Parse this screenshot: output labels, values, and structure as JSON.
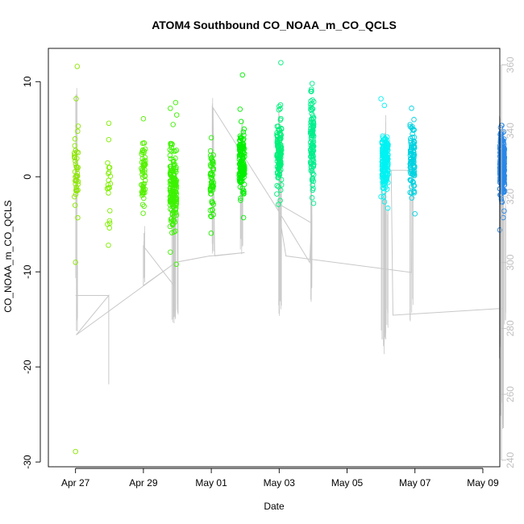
{
  "chart_data": {
    "type": "scatter",
    "title": "ATOM4 Southbound CO_NOAA_m_CO_QCLS",
    "xlabel": "Date",
    "ylabel": "CO_NOAA_m_CO_QCLS",
    "xlim_days": [
      -0.8,
      12.5
    ],
    "ylim": [
      -30.5,
      13.5
    ],
    "ylim_right": [
      238,
      365
    ],
    "x_ticks": [
      {
        "day": 0,
        "label": "Apr 27"
      },
      {
        "day": 2,
        "label": "Apr 29"
      },
      {
        "day": 4,
        "label": "May 01"
      },
      {
        "day": 6,
        "label": "May 03"
      },
      {
        "day": 8,
        "label": "May 05"
      },
      {
        "day": 10,
        "label": "May 07"
      },
      {
        "day": 12,
        "label": "May 09"
      }
    ],
    "y_ticks": [
      -30,
      -20,
      -10,
      0,
      10
    ],
    "y_ticks_right": [
      240,
      260,
      280,
      300,
      320,
      340,
      360
    ],
    "scatter_groups": [
      {
        "center": 0.02,
        "spread": 0.06,
        "n": 40,
        "mean": 0.3,
        "sd": 1.9,
        "color": "#8CE600",
        "outliers": [
          [
            0.05,
            11.6
          ],
          [
            0.02,
            8.2
          ],
          [
            0.0,
            -9.0
          ],
          [
            0.0,
            -28.9
          ]
        ]
      },
      {
        "center": 0.98,
        "spread": 0.05,
        "n": 20,
        "mean": -1.0,
        "sd": 2.6,
        "color": "#7FEE00",
        "outliers": [
          [
            0.97,
            -7.2
          ],
          [
            0.98,
            3.9
          ]
        ]
      },
      {
        "center": 2.0,
        "spread": 0.06,
        "n": 55,
        "mean": 0.5,
        "sd": 2.0,
        "color": "#55F000",
        "outliers": [
          [
            2.0,
            6.1
          ],
          [
            2.02,
            -3.1
          ]
        ]
      },
      {
        "center": 2.88,
        "spread": 0.1,
        "n": 160,
        "mean": -0.8,
        "sd": 2.1,
        "color": "#3CF200",
        "outliers": [
          [
            2.95,
            7.8
          ],
          [
            2.98,
            6.5
          ],
          [
            2.97,
            -9.2
          ],
          [
            2.9,
            -5.8
          ]
        ]
      },
      {
        "center": 4.02,
        "spread": 0.05,
        "n": 55,
        "mean": -0.6,
        "sd": 1.6,
        "color": "#22F000",
        "outliers": [
          [
            4.0,
            4.1
          ],
          [
            4.0,
            -4.2
          ]
        ]
      },
      {
        "center": 4.9,
        "spread": 0.08,
        "n": 140,
        "mean": 1.2,
        "sd": 1.8,
        "color": "#00F000",
        "outliers": [
          [
            4.92,
            10.7
          ],
          [
            4.95,
            -4.3
          ],
          [
            4.88,
            5.8
          ]
        ]
      },
      {
        "center": 6.0,
        "spread": 0.07,
        "n": 120,
        "mean": 2.5,
        "sd": 1.9,
        "color": "#00F07A",
        "outliers": [
          [
            6.05,
            12.0
          ],
          [
            6.0,
            7.4
          ],
          [
            6.03,
            -2.5
          ]
        ]
      },
      {
        "center": 6.97,
        "spread": 0.05,
        "n": 110,
        "mean": 3.0,
        "sd": 2.5,
        "color": "#00EE8C",
        "outliers": [
          [
            6.97,
            9.8
          ],
          [
            6.95,
            9.2
          ]
        ]
      },
      {
        "center": 9.12,
        "spread": 0.09,
        "n": 200,
        "mean": 1.6,
        "sd": 1.5,
        "color": "#00F2F2",
        "outliers": [
          [
            9.0,
            8.2
          ],
          [
            9.1,
            7.5
          ],
          [
            9.2,
            -3.3
          ],
          [
            9.0,
            -2.1
          ]
        ]
      },
      {
        "center": 9.92,
        "spread": 0.07,
        "n": 100,
        "mean": 1.8,
        "sd": 1.8,
        "color": "#00D2E0",
        "outliers": [
          [
            9.9,
            7.2
          ],
          [
            10.0,
            -3.9
          ]
        ]
      },
      {
        "center": 12.57,
        "spread": 0.07,
        "n": 260,
        "mean": 1.2,
        "sd": 1.6,
        "color": "#2A88E8",
        "outliers": [
          [
            12.55,
            5.4
          ],
          [
            12.5,
            -5.6
          ],
          [
            12.6,
            -4.3
          ]
        ]
      }
    ],
    "altitude_trace": {
      "color": "#c8c8c8",
      "path": [
        [
          0.0,
          290
        ],
        [
          0.0,
          290
        ],
        [
          0.98,
          290
        ],
        [
          0.98,
          263
        ],
        [
          0.98,
          290
        ],
        [
          0.02,
          278
        ],
        [
          2.95,
          300
        ],
        [
          2.0,
          293
        ],
        [
          2.0,
          305
        ],
        [
          2.9,
          293
        ],
        [
          2.92,
          300
        ],
        [
          3.95,
          302
        ],
        [
          3.98,
          302
        ],
        [
          4.98,
          303
        ],
        [
          4.1,
          302
        ],
        [
          4.05,
          347
        ],
        [
          5.9,
          317
        ],
        [
          6.9,
          300
        ],
        [
          6.95,
          312
        ],
        [
          5.95,
          318
        ],
        [
          6.2,
          302
        ],
        [
          9.9,
          297
        ],
        [
          9.92,
          328
        ],
        [
          9.3,
          328
        ],
        [
          9.35,
          284
        ],
        [
          12.5,
          286
        ],
        [
          12.6,
          286
        ]
      ],
      "spikes": [
        [
          0.02,
          290,
          355
        ],
        [
          0.04,
          278,
          300
        ],
        [
          2.02,
          293,
          312
        ],
        [
          2.85,
          280,
          330
        ],
        [
          2.9,
          281,
          322
        ],
        [
          2.95,
          282,
          325
        ],
        [
          3.0,
          283,
          318
        ],
        [
          4.02,
          302,
          350
        ],
        [
          4.05,
          300,
          343
        ],
        [
          4.88,
          302,
          340
        ],
        [
          4.92,
          301,
          345
        ],
        [
          6.0,
          283,
          348
        ],
        [
          6.05,
          285,
          340
        ],
        [
          6.95,
          288,
          335
        ],
        [
          6.97,
          292,
          320
        ],
        [
          9.02,
          275,
          330
        ],
        [
          9.08,
          272,
          322
        ],
        [
          9.12,
          275,
          345
        ],
        [
          9.18,
          280,
          320
        ],
        [
          9.85,
          282,
          325
        ],
        [
          9.92,
          284,
          330
        ],
        [
          12.5,
          270,
          345
        ],
        [
          12.55,
          252,
          340
        ],
        [
          12.6,
          246,
          330
        ],
        [
          12.65,
          280,
          320
        ]
      ]
    }
  }
}
